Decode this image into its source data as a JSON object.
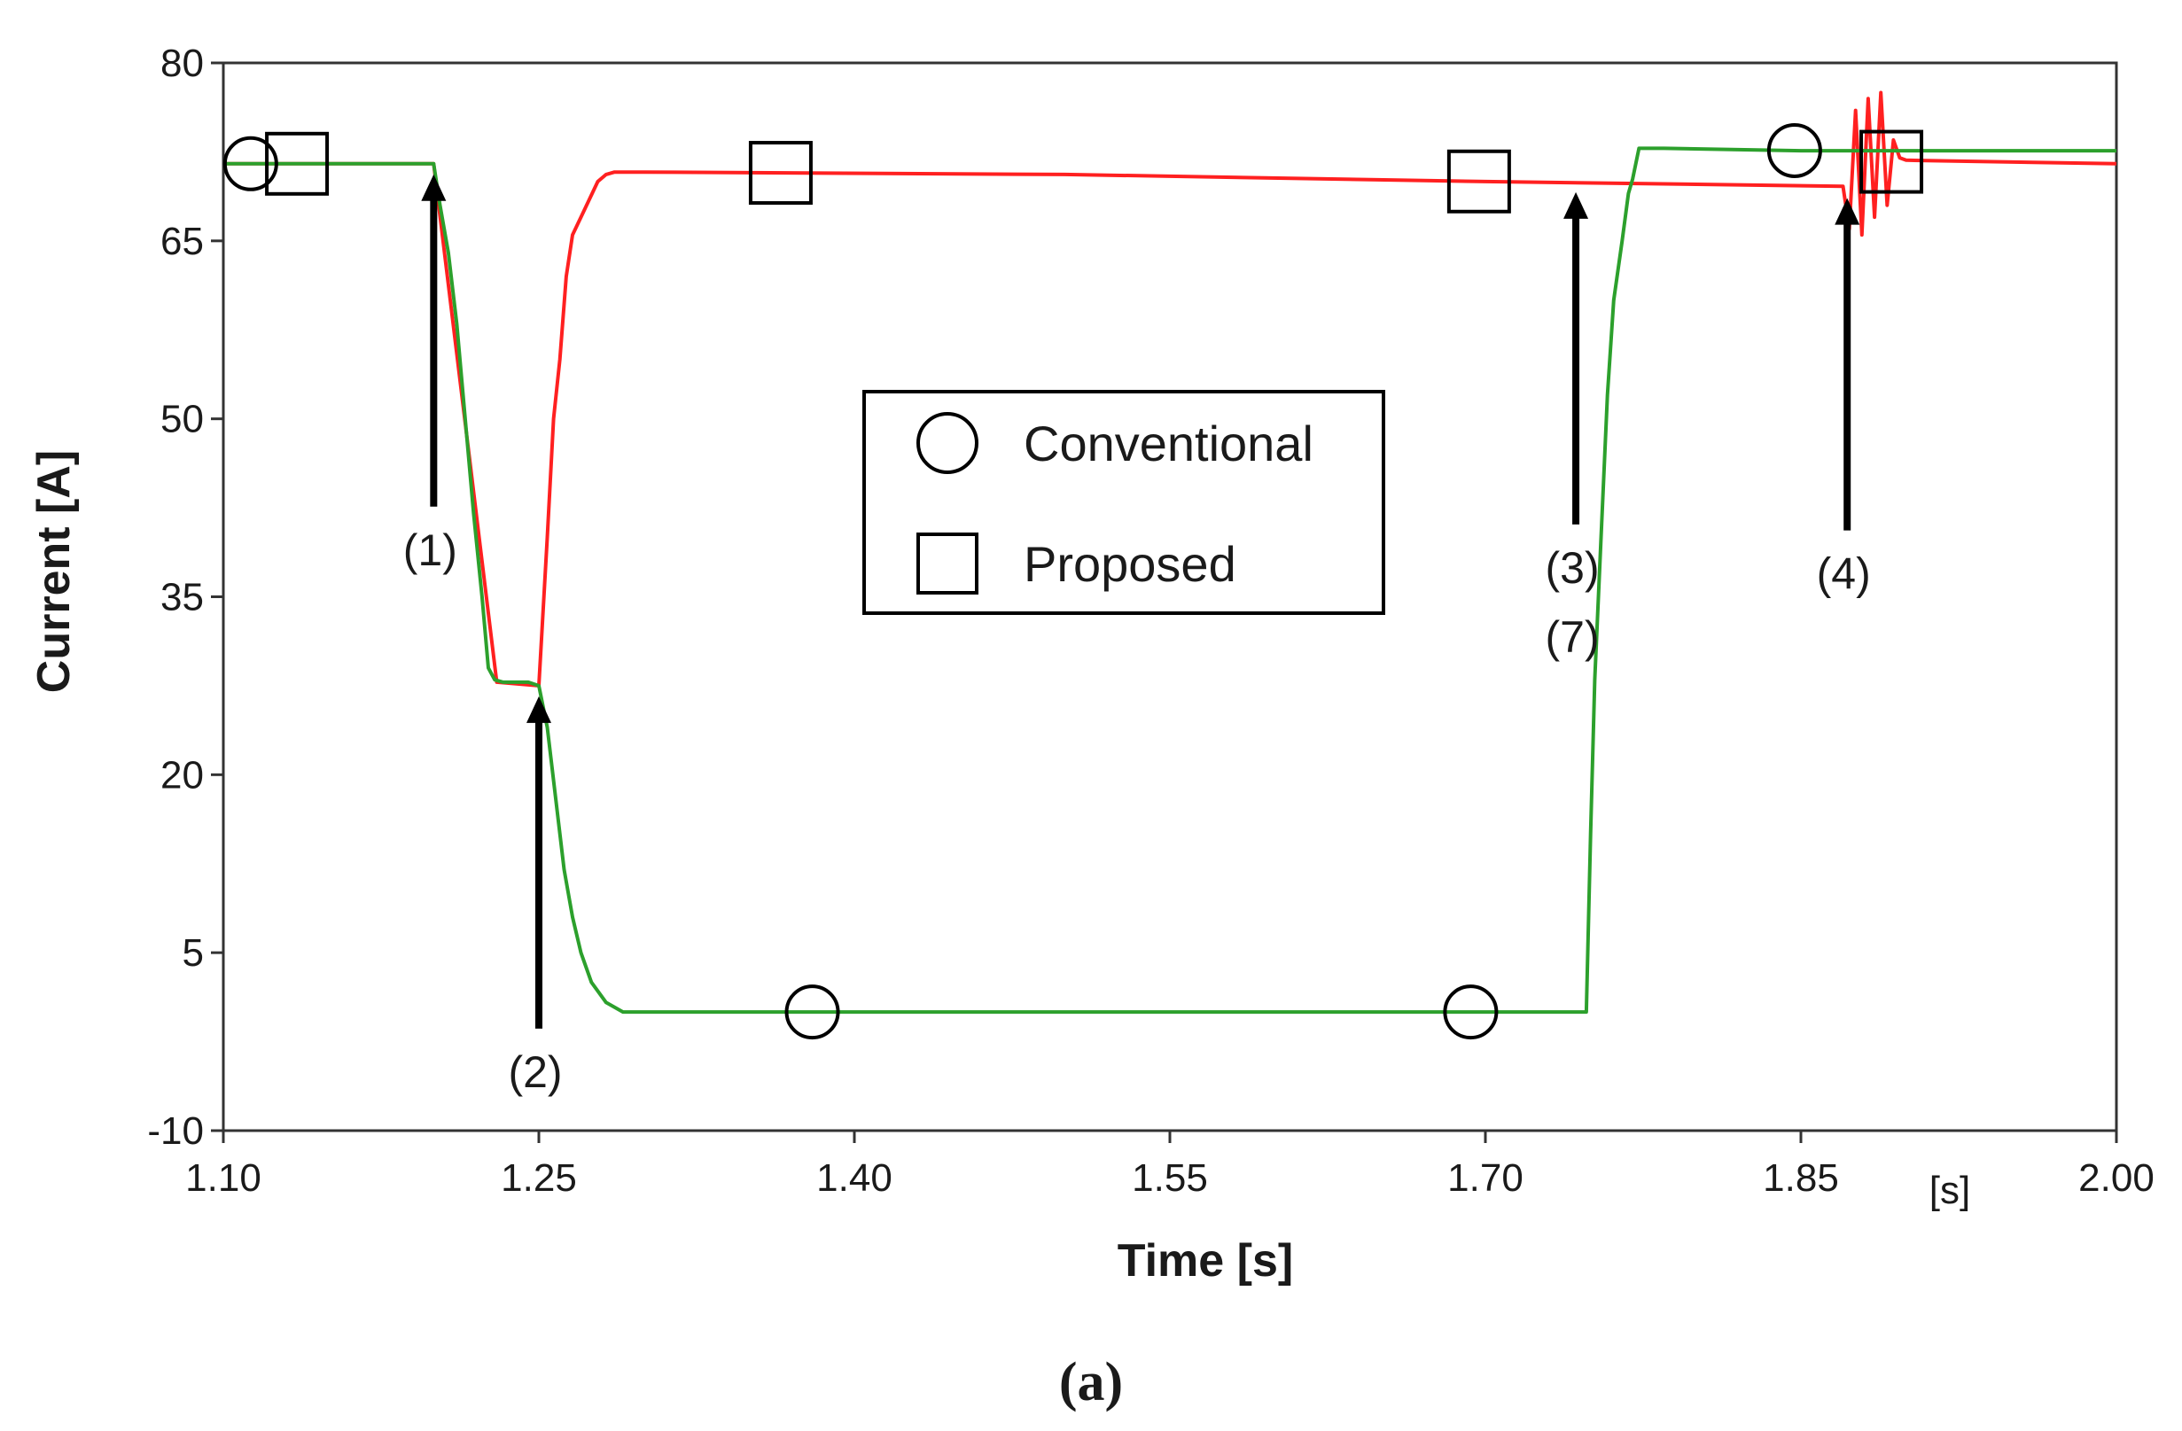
{
  "chart_data": {
    "type": "line",
    "xlabel": "Time [s]",
    "ylabel": "Current [A]",
    "x_unit_label": "[s]",
    "caption": "(a)",
    "xlim": [
      1.1,
      2.0
    ],
    "ylim": [
      -10,
      80
    ],
    "xticks": [
      "1.10",
      "1.25",
      "1.40",
      "1.55",
      "1.70",
      "1.85",
      "2.00"
    ],
    "yticks": [
      "80",
      "65",
      "50",
      "35",
      "20",
      "5",
      "-10"
    ],
    "grid": false,
    "legend_position": "center",
    "legend": [
      {
        "label": "Conventional",
        "marker": "circle"
      },
      {
        "label": "Proposed",
        "marker": "square"
      }
    ],
    "series": [
      {
        "name": "Conventional",
        "color": "#2ca02c",
        "marker": "circle",
        "x": [
          1.1,
          1.2,
          1.203,
          1.207,
          1.211,
          1.215,
          1.219,
          1.223,
          1.226,
          1.229,
          1.233,
          1.236,
          1.245,
          1.25,
          1.254,
          1.258,
          1.262,
          1.266,
          1.27,
          1.275,
          1.282,
          1.29,
          1.4,
          1.55,
          1.7,
          1.748,
          1.75,
          1.752,
          1.755,
          1.758,
          1.761,
          1.765,
          1.768,
          1.77,
          1.773,
          1.785,
          1.85,
          2.0
        ],
        "y": [
          71.5,
          71.5,
          68,
          64,
          58,
          50,
          42,
          35,
          29,
          28,
          27.8,
          27.8,
          27.8,
          27.5,
          24,
          18,
          12,
          8,
          5,
          2.5,
          0.8,
          0,
          0,
          0,
          0,
          0,
          15,
          28,
          40,
          52,
          60,
          65,
          69,
          70.2,
          72.8,
          72.8,
          72.6,
          72.6
        ],
        "markers_at": [
          1.113,
          1.38,
          1.693,
          1.847
        ]
      },
      {
        "name": "Proposed",
        "color": "#ff2020",
        "marker": "square",
        "x": [
          1.1,
          1.2,
          1.23,
          1.25,
          1.254,
          1.257,
          1.26,
          1.263,
          1.266,
          1.27,
          1.274,
          1.278,
          1.282,
          1.286,
          1.3,
          1.5,
          1.7,
          1.87,
          1.873,
          1.876,
          1.879,
          1.882,
          1.885,
          1.888,
          1.891,
          1.894,
          1.897,
          1.9,
          2.0
        ],
        "y": [
          71.5,
          71.5,
          27.8,
          27.5,
          40,
          50,
          55,
          62,
          65.5,
          67,
          68.5,
          70,
          70.6,
          70.8,
          70.8,
          70.6,
          70.0,
          69.6,
          66,
          76,
          65.5,
          77,
          67,
          77.5,
          68,
          73.5,
          72,
          71.8,
          71.5
        ],
        "markers_at": [
          1.135,
          1.365,
          1.697,
          1.893
        ]
      }
    ],
    "annotations": [
      {
        "label": "(1)",
        "arrow_x": 1.2,
        "arrow_tip_y": 71.5
      },
      {
        "label": "(2)",
        "arrow_x": 1.25,
        "arrow_tip_y": 27.5
      },
      {
        "label": "(3)",
        "arrow_x": 1.743,
        "arrow_tip_y": 70.0
      },
      {
        "label": "(7)",
        "arrow_x": 1.743,
        "arrow_tip_y": 70.0
      },
      {
        "label": "(4)",
        "arrow_x": 1.872,
        "arrow_tip_y": 69.5
      }
    ]
  }
}
